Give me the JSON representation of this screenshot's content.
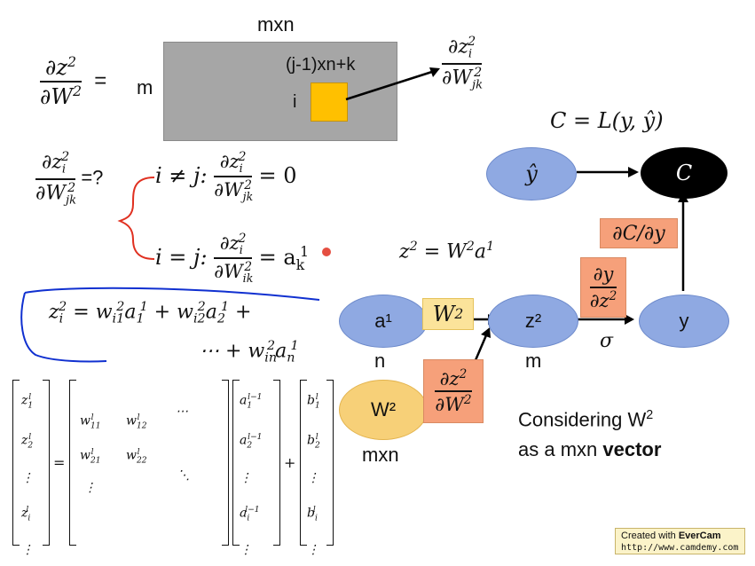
{
  "matrix_block": {
    "size_label": "mxn",
    "row_label": "m",
    "index_col_label": "(j-1)xn+k",
    "index_row_label": "i"
  },
  "equations": {
    "lhs_top": "∂z²/∂W² =",
    "target_deriv": "∂z_i²/∂W_jk²",
    "question": "∂z_i²/∂W_jk² =?",
    "case_neq_cond": "i ≠ j:",
    "case_neq_result": "= 0",
    "case_eq_cond": "i = j:",
    "case_eq_result": "= a_k¹",
    "z_def": "z² = W²a¹",
    "cost_def": "C = L(y, ŷ)",
    "zi_line1": "z_i² = w_i1²a_1¹ + w_i2²a_2¹ +",
    "zi_line2": "⋯ + w_in²a_n¹"
  },
  "graph": {
    "node_yhat": "ŷ",
    "node_c": "C",
    "node_a1": "a¹",
    "node_z2": "z²",
    "node_y": "y",
    "node_w2": "W²",
    "label_n": "n",
    "label_m": "m",
    "label_mxn": "mxn",
    "label_sigma": "σ",
    "box_w2": "W²",
    "box_dzdw": "∂z²/∂W²",
    "box_dydz": "∂y/∂z²",
    "box_dcdy": "∂C/∂y"
  },
  "note": {
    "line1": "Considering W²",
    "line2_prefix": "as a mxn ",
    "line2_bold": "vector"
  },
  "watermark": {
    "line1_prefix": "Created with ",
    "line1_brand": "EverCam",
    "line2": "http://www.camdemy.com"
  },
  "colors": {
    "node_blue": "#8fa9e2",
    "node_yellow": "#f7d078",
    "box_orange": "#f6a07a",
    "box_yellow": "#fbe39a",
    "highlight": "#ffc000",
    "gray_block": "#a6a6a6",
    "annot_red": "#e03020",
    "annot_blue": "#1030d0"
  }
}
